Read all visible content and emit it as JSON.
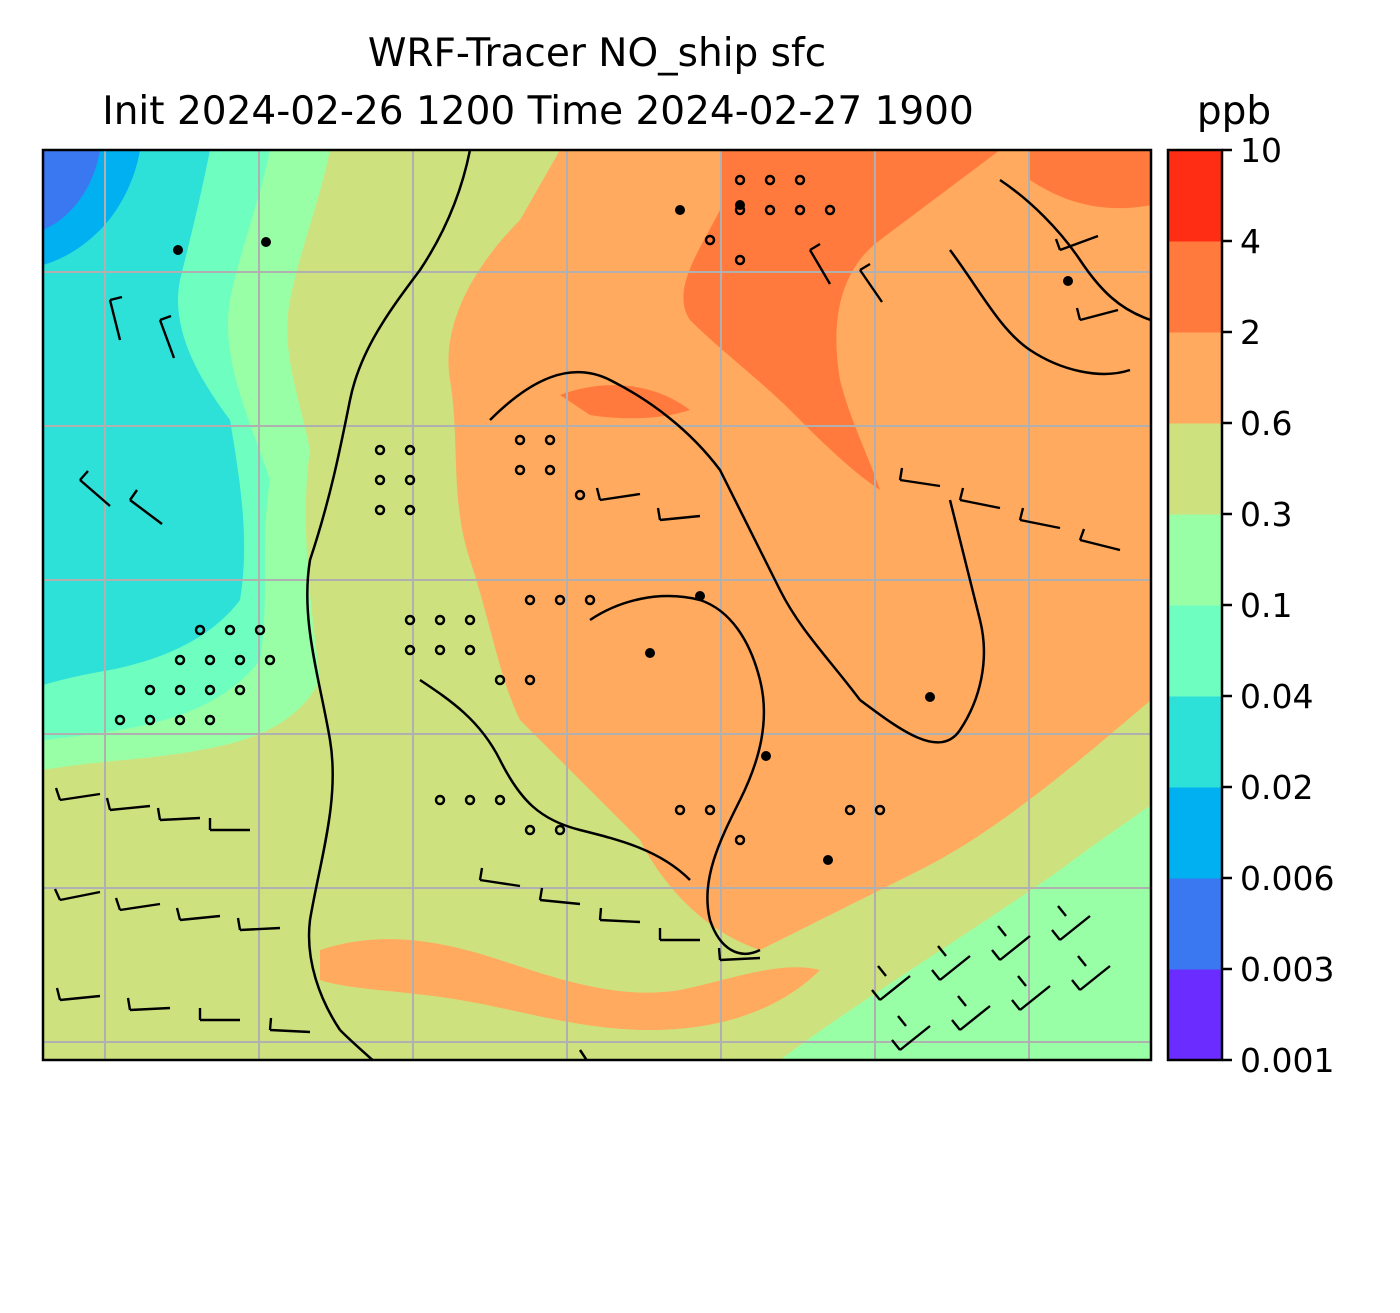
{
  "map": {
    "title_line1": "WRF-Tracer NO_ship sfc",
    "title_line2": "Init 2024-02-26 1200 Time 2024-02-27 1900",
    "units": "ppb",
    "field": "NO_ship surface concentration",
    "overlay": "wind barbs",
    "gridlines": true
  },
  "colorbar": {
    "levels": [
      "0.001",
      "0.003",
      "0.006",
      "0.02",
      "0.04",
      "0.1",
      "0.3",
      "0.6",
      "2",
      "4",
      "10"
    ],
    "colors": [
      "#6a2cff",
      "#3a78f2",
      "#00b0f0",
      "#2de0d8",
      "#6effc0",
      "#99ffa6",
      "#cde27e",
      "#ffaa5e",
      "#ff7a3c",
      "#ff2d14"
    ]
  }
}
